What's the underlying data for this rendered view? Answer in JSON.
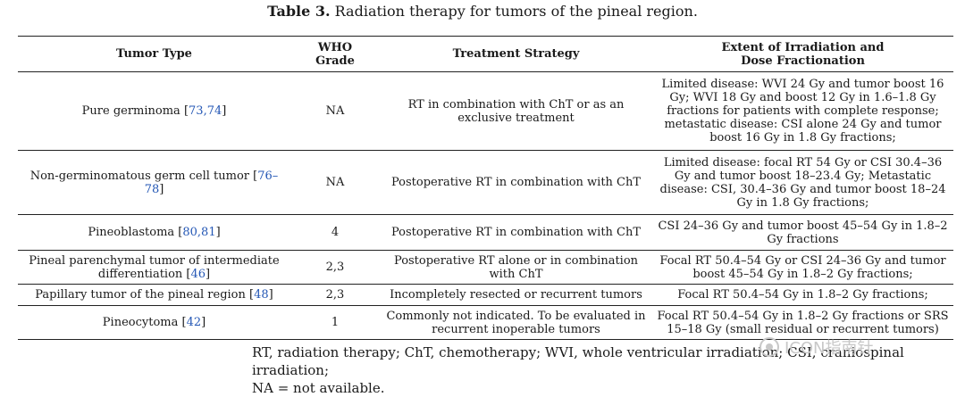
{
  "caption": {
    "label": "Table 3.",
    "text": "Radiation therapy for tumors of the pineal region."
  },
  "table": {
    "headers": {
      "tumor_type": "Tumor Type",
      "who_grade_line1": "WHO",
      "who_grade_line2": "Grade",
      "strategy": "Treatment Strategy",
      "extent_line1": "Extent of Irradiation and",
      "extent_line2": "Dose Fractionation"
    },
    "rows": [
      {
        "tumor_name": "Pure germinoma",
        "refs": "73,74",
        "grade": "NA",
        "strategy": "RT in combination with ChT or as an exclusive treatment",
        "extent": "Limited disease: WVI 24 Gy and tumor boost 16 Gy; WVI 18 Gy and boost 12 Gy in 1.6–1.8 Gy fractions for patients with complete response; metastatic disease: CSI alone 24 Gy and tumor boost 16 Gy in 1.8 Gy fractions;"
      },
      {
        "tumor_name": "Non-germinomatous germ cell tumor",
        "refs": "76–78",
        "grade": "NA",
        "strategy": "Postoperative RT in combination with ChT",
        "extent": "Limited disease: focal RT 54 Gy or CSI 30.4–36 Gy and tumor boost 18–23.4 Gy; Metastatic disease: CSI, 30.4–36 Gy and tumor boost 18–24 Gy in 1.8 Gy fractions;"
      },
      {
        "tumor_name": "Pineoblastoma",
        "refs": "80,81",
        "grade": "4",
        "strategy": "Postoperative RT in combination with ChT",
        "extent": "CSI 24–36 Gy and tumor boost 45–54 Gy in 1.8–2 Gy fractions"
      },
      {
        "tumor_name": "Pineal parenchymal tumor of intermediate differentiation",
        "refs": "46",
        "grade": "2,3",
        "strategy": "Postoperative RT alone or in combination with ChT",
        "extent": "Focal RT 50.4–54 Gy or CSI 24–36 Gy and tumor boost 45–54 Gy in 1.8–2 Gy fractions;"
      },
      {
        "tumor_name": "Papillary tumor of the pineal region",
        "refs": "48",
        "grade": "2,3",
        "strategy": "Incompletely resected or recurrent tumors",
        "extent": "Focal RT 50.4–54 Gy in 1.8–2 Gy fractions;"
      },
      {
        "tumor_name": "Pineocytoma",
        "refs": "42",
        "grade": "1",
        "strategy": "Commonly not indicated. To be evaluated in recurrent inoperable tumors",
        "extent": "Focal RT 50.4–54 Gy in 1.8–2 Gy fractions or SRS 15–18 Gy (small residual or recurrent tumors)"
      }
    ]
  },
  "footnote": {
    "line1": "RT, radiation therapy; ChT, chemotherapy; WVI, whole ventricular irradiation; CSI, craniospinal irradiation;",
    "line2": "NA = not available."
  },
  "watermark": {
    "text": "ICON指南针",
    "icon": "wechat-logo-icon"
  }
}
